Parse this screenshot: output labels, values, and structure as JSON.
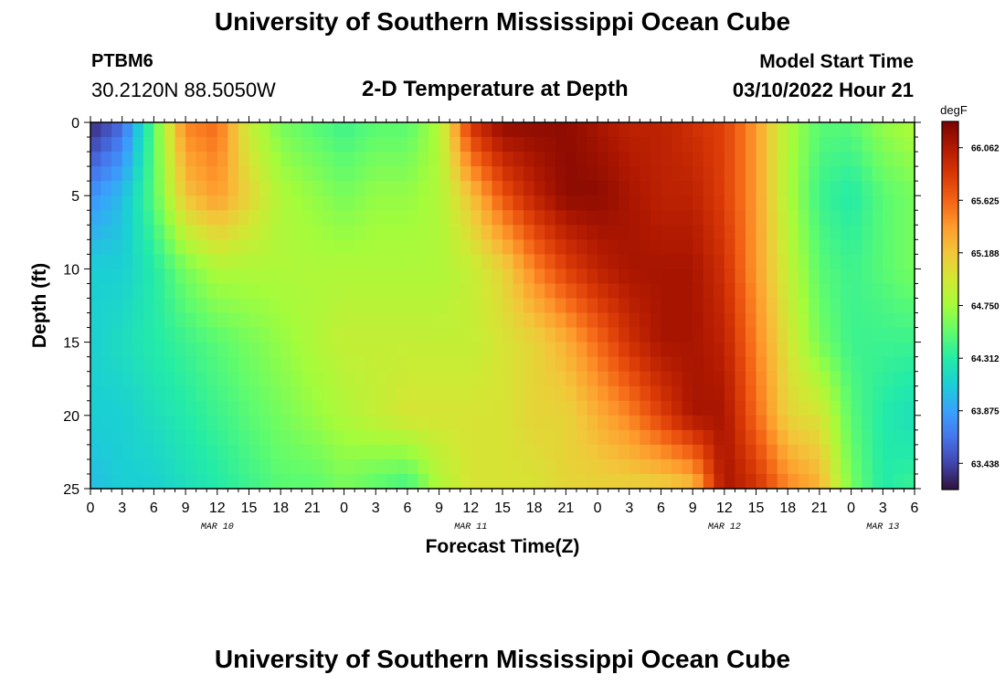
{
  "header": {
    "title": "University of Southern Mississippi Ocean Cube",
    "station": "PTBM6",
    "coordinates": "30.2120N  88.5050W",
    "chart_title": "2-D Temperature at Depth",
    "start_label": "Model Start Time",
    "start_time": "03/10/2022 Hour 21"
  },
  "footer": {
    "title": "University of Southern Mississippi Ocean Cube"
  },
  "chart_data": {
    "type": "heatmap",
    "title": "2-D Temperature at Depth",
    "xlabel": "Forecast Time(Z)",
    "ylabel": "Depth (ft)",
    "x_ticks": [
      "0",
      "3",
      "6",
      "9",
      "12",
      "15",
      "18",
      "21",
      "0",
      "3",
      "6",
      "9",
      "12",
      "15",
      "18",
      "21",
      "0",
      "3",
      "6",
      "9",
      "12",
      "15",
      "18",
      "21",
      "0",
      "3",
      "6"
    ],
    "x_hours": [
      0,
      3,
      6,
      9,
      12,
      15,
      18,
      21,
      24,
      27,
      30,
      33,
      36,
      39,
      42,
      45,
      48,
      51,
      54,
      57,
      60,
      63,
      66,
      69,
      72,
      75,
      78
    ],
    "date_labels": [
      {
        "text": "MAR 10",
        "hour": 12
      },
      {
        "text": "MAR 11",
        "hour": 36
      },
      {
        "text": "MAR 12",
        "hour": 60
      },
      {
        "text": "MAR 13",
        "hour": 75
      }
    ],
    "xlim": [
      0,
      78
    ],
    "y_ticks": [
      0,
      5,
      10,
      15,
      20,
      25
    ],
    "ylim": [
      0,
      25
    ],
    "y_inverted": true,
    "colorbar": {
      "unit": "degF",
      "ticks": [
        66.062,
        65.625,
        65.188,
        64.75,
        64.312,
        63.875,
        63.438
      ],
      "tick_labels": [
        "66.062",
        "65.625",
        "65.188",
        "64.750",
        "64.312",
        "63.875",
        "63.438"
      ],
      "range": [
        63.22,
        66.28
      ],
      "colors": [
        "#30123b",
        "#4145ab",
        "#4675ed",
        "#39a2fc",
        "#1bcfd4",
        "#24eca6",
        "#61fc6c",
        "#a4fc3b",
        "#d1e834",
        "#f3c63a",
        "#fe9b2d",
        "#f36315",
        "#d93806",
        "#b11901",
        "#7a0402"
      ]
    },
    "field_description": "Temperature (degF) sampled on a grid of forecast hours (columns) by depth (rows); interpolated to pixels by the drawing script.",
    "grid_hours": [
      0,
      3,
      6,
      9,
      12,
      15,
      18,
      21,
      24,
      27,
      30,
      33,
      36,
      39,
      42,
      45,
      48,
      51,
      54,
      57,
      60,
      63,
      66,
      69,
      72,
      75,
      78
    ],
    "grid_depths": [
      0,
      5,
      10,
      15,
      20,
      25
    ],
    "temperatures": [
      [
        63.3,
        63.6,
        64.5,
        65.5,
        65.6,
        64.9,
        64.6,
        64.5,
        64.4,
        64.5,
        64.5,
        64.8,
        65.9,
        66.2,
        66.2,
        66.2,
        66.1,
        66.0,
        66.0,
        65.9,
        65.8,
        65.4,
        64.8,
        64.5,
        64.5,
        64.7,
        64.8
      ],
      [
        63.8,
        64.0,
        64.5,
        65.2,
        65.4,
        65.1,
        64.8,
        64.7,
        64.6,
        64.7,
        64.7,
        64.8,
        65.2,
        65.7,
        66.0,
        66.2,
        66.2,
        66.1,
        66.0,
        66.0,
        65.8,
        65.4,
        64.8,
        64.4,
        64.3,
        64.5,
        64.6
      ],
      [
        64.1,
        64.1,
        64.3,
        64.6,
        64.8,
        64.8,
        64.8,
        64.8,
        64.8,
        64.8,
        64.8,
        64.8,
        64.9,
        65.1,
        65.5,
        65.8,
        66.0,
        66.1,
        66.1,
        66.1,
        65.9,
        65.4,
        64.9,
        64.5,
        64.4,
        64.5,
        64.6
      ],
      [
        64.1,
        64.2,
        64.3,
        64.4,
        64.5,
        64.6,
        64.7,
        64.8,
        64.9,
        64.9,
        64.9,
        64.9,
        64.9,
        65.0,
        65.1,
        65.3,
        65.6,
        65.9,
        66.1,
        66.1,
        66.0,
        65.5,
        65.0,
        64.6,
        64.4,
        64.4,
        64.4
      ],
      [
        64.1,
        64.1,
        64.2,
        64.3,
        64.4,
        64.5,
        64.6,
        64.7,
        64.8,
        64.9,
        65.0,
        65.0,
        65.0,
        65.0,
        65.1,
        65.1,
        65.3,
        65.5,
        65.8,
        66.1,
        66.1,
        65.6,
        65.1,
        65.0,
        64.5,
        64.3,
        64.2
      ],
      [
        64.0,
        64.1,
        64.1,
        64.2,
        64.3,
        64.4,
        64.5,
        64.5,
        64.6,
        64.5,
        64.4,
        64.8,
        65.0,
        65.0,
        65.0,
        65.1,
        65.1,
        65.1,
        65.1,
        65.2,
        66.1,
        65.9,
        65.5,
        65.3,
        64.6,
        64.3,
        64.4
      ]
    ]
  }
}
